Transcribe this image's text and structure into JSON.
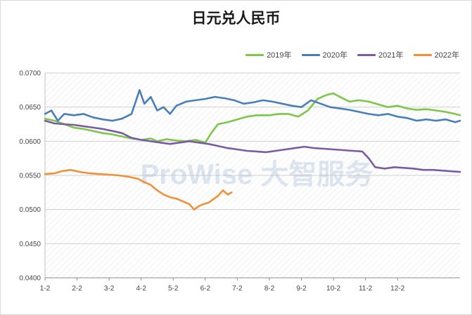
{
  "chart_data": {
    "type": "line",
    "title": "日元兑人民币",
    "xlabel": "",
    "ylabel": "",
    "categories": [
      "1-2",
      "2-2",
      "3-2",
      "4-2",
      "5-2",
      "6-2",
      "7-2",
      "8-2",
      "9-2",
      "10-2",
      "11-2",
      "12-2"
    ],
    "ylim": [
      0.04,
      0.07
    ],
    "yticks": [
      "0.0400",
      "0.0450",
      "0.0500",
      "0.0550",
      "0.0600",
      "0.0650",
      "0.0700"
    ],
    "grid": true,
    "legend_position": "top-right",
    "watermark": "ProWise 大智服务",
    "series": [
      {
        "name": "2019年",
        "color": "#7dc64a",
        "points": [
          [
            0.0,
            0.0633
          ],
          [
            0.3,
            0.063
          ],
          [
            0.6,
            0.0625
          ],
          [
            0.9,
            0.062
          ],
          [
            1.2,
            0.0618
          ],
          [
            1.5,
            0.0615
          ],
          [
            1.8,
            0.0612
          ],
          [
            2.1,
            0.061
          ],
          [
            2.4,
            0.0607
          ],
          [
            2.7,
            0.0604
          ],
          [
            3.0,
            0.0602
          ],
          [
            3.3,
            0.0604
          ],
          [
            3.5,
            0.06
          ],
          [
            3.8,
            0.0603
          ],
          [
            4.1,
            0.0601
          ],
          [
            4.4,
            0.06
          ],
          [
            4.7,
            0.0602
          ],
          [
            5.0,
            0.0598
          ],
          [
            5.2,
            0.0613
          ],
          [
            5.4,
            0.0625
          ],
          [
            5.7,
            0.0628
          ],
          [
            6.0,
            0.0632
          ],
          [
            6.3,
            0.0636
          ],
          [
            6.6,
            0.0638
          ],
          [
            7.0,
            0.0638
          ],
          [
            7.3,
            0.064
          ],
          [
            7.6,
            0.064
          ],
          [
            7.9,
            0.0636
          ],
          [
            8.2,
            0.0645
          ],
          [
            8.5,
            0.0662
          ],
          [
            8.8,
            0.0668
          ],
          [
            9.0,
            0.067
          ],
          [
            9.2,
            0.0665
          ],
          [
            9.5,
            0.0658
          ],
          [
            9.8,
            0.066
          ],
          [
            10.1,
            0.0658
          ],
          [
            10.4,
            0.0654
          ],
          [
            10.7,
            0.065
          ],
          [
            11.0,
            0.0652
          ],
          [
            11.3,
            0.0648
          ],
          [
            11.6,
            0.0646
          ],
          [
            11.9,
            0.0647
          ],
          [
            12.2,
            0.0645
          ],
          [
            12.5,
            0.0643
          ],
          [
            12.8,
            0.064
          ],
          [
            12.95,
            0.0638
          ]
        ]
      },
      {
        "name": "2020年",
        "color": "#4a7ebb",
        "points": [
          [
            0.0,
            0.064
          ],
          [
            0.2,
            0.0645
          ],
          [
            0.4,
            0.063
          ],
          [
            0.6,
            0.064
          ],
          [
            0.9,
            0.0638
          ],
          [
            1.2,
            0.064
          ],
          [
            1.5,
            0.0635
          ],
          [
            1.8,
            0.0632
          ],
          [
            2.1,
            0.063
          ],
          [
            2.4,
            0.0633
          ],
          [
            2.7,
            0.064
          ],
          [
            2.95,
            0.0675
          ],
          [
            3.1,
            0.0655
          ],
          [
            3.3,
            0.0665
          ],
          [
            3.5,
            0.0645
          ],
          [
            3.7,
            0.065
          ],
          [
            3.9,
            0.064
          ],
          [
            4.1,
            0.0652
          ],
          [
            4.4,
            0.0658
          ],
          [
            4.7,
            0.066
          ],
          [
            5.0,
            0.0662
          ],
          [
            5.3,
            0.0665
          ],
          [
            5.6,
            0.0663
          ],
          [
            5.9,
            0.066
          ],
          [
            6.2,
            0.0655
          ],
          [
            6.5,
            0.0657
          ],
          [
            6.8,
            0.066
          ],
          [
            7.1,
            0.0658
          ],
          [
            7.4,
            0.0655
          ],
          [
            7.7,
            0.0652
          ],
          [
            8.0,
            0.065
          ],
          [
            8.3,
            0.066
          ],
          [
            8.6,
            0.0655
          ],
          [
            8.9,
            0.065
          ],
          [
            9.2,
            0.0648
          ],
          [
            9.5,
            0.0646
          ],
          [
            9.8,
            0.0643
          ],
          [
            10.1,
            0.064
          ],
          [
            10.4,
            0.0638
          ],
          [
            10.7,
            0.064
          ],
          [
            11.0,
            0.0636
          ],
          [
            11.3,
            0.0634
          ],
          [
            11.6,
            0.063
          ],
          [
            11.9,
            0.0632
          ],
          [
            12.2,
            0.063
          ],
          [
            12.5,
            0.0632
          ],
          [
            12.8,
            0.0628
          ],
          [
            12.95,
            0.063
          ]
        ]
      },
      {
        "name": "2021年",
        "color": "#7b5aa6",
        "points": [
          [
            0.0,
            0.063
          ],
          [
            0.3,
            0.0626
          ],
          [
            0.6,
            0.0625
          ],
          [
            0.9,
            0.0624
          ],
          [
            1.2,
            0.0622
          ],
          [
            1.5,
            0.062
          ],
          [
            1.8,
            0.0618
          ],
          [
            2.1,
            0.0615
          ],
          [
            2.4,
            0.0612
          ],
          [
            2.7,
            0.0605
          ],
          [
            3.0,
            0.0602
          ],
          [
            3.3,
            0.06
          ],
          [
            3.6,
            0.0598
          ],
          [
            3.9,
            0.0596
          ],
          [
            4.2,
            0.0598
          ],
          [
            4.5,
            0.06
          ],
          [
            4.8,
            0.0598
          ],
          [
            5.1,
            0.0596
          ],
          [
            5.4,
            0.0593
          ],
          [
            5.7,
            0.059
          ],
          [
            6.0,
            0.0588
          ],
          [
            6.3,
            0.0586
          ],
          [
            6.6,
            0.0585
          ],
          [
            6.9,
            0.0584
          ],
          [
            7.2,
            0.0586
          ],
          [
            7.5,
            0.0588
          ],
          [
            7.8,
            0.059
          ],
          [
            8.1,
            0.0592
          ],
          [
            8.4,
            0.059
          ],
          [
            8.7,
            0.0589
          ],
          [
            9.0,
            0.0588
          ],
          [
            9.3,
            0.0587
          ],
          [
            9.6,
            0.0586
          ],
          [
            9.9,
            0.0585
          ],
          [
            10.1,
            0.0575
          ],
          [
            10.3,
            0.0562
          ],
          [
            10.6,
            0.056
          ],
          [
            10.9,
            0.0562
          ],
          [
            11.2,
            0.0561
          ],
          [
            11.5,
            0.056
          ],
          [
            11.8,
            0.0558
          ],
          [
            12.1,
            0.0558
          ],
          [
            12.4,
            0.0557
          ],
          [
            12.7,
            0.0556
          ],
          [
            12.95,
            0.0555
          ]
        ]
      },
      {
        "name": "2022年",
        "color": "#f0913a",
        "points": [
          [
            0.0,
            0.0552
          ],
          [
            0.3,
            0.0553
          ],
          [
            0.5,
            0.0556
          ],
          [
            0.8,
            0.0558
          ],
          [
            1.1,
            0.0555
          ],
          [
            1.4,
            0.0553
          ],
          [
            1.7,
            0.0552
          ],
          [
            2.0,
            0.0551
          ],
          [
            2.3,
            0.055
          ],
          [
            2.6,
            0.0548
          ],
          [
            2.9,
            0.0545
          ],
          [
            3.1,
            0.054
          ],
          [
            3.3,
            0.0536
          ],
          [
            3.5,
            0.0528
          ],
          [
            3.7,
            0.0522
          ],
          [
            3.9,
            0.0518
          ],
          [
            4.1,
            0.0516
          ],
          [
            4.3,
            0.0512
          ],
          [
            4.5,
            0.0508
          ],
          [
            4.65,
            0.05
          ],
          [
            4.8,
            0.0505
          ],
          [
            4.95,
            0.0508
          ],
          [
            5.1,
            0.051
          ],
          [
            5.25,
            0.0515
          ],
          [
            5.4,
            0.052
          ],
          [
            5.55,
            0.0528
          ],
          [
            5.7,
            0.0522
          ],
          [
            5.82,
            0.0525
          ]
        ]
      }
    ]
  }
}
